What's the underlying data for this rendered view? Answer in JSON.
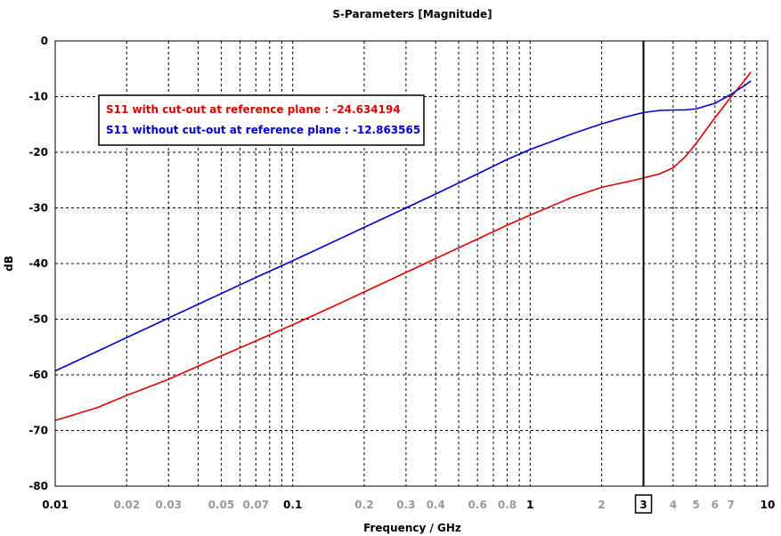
{
  "chart_data": {
    "type": "line",
    "title": "S-Parameters [Magnitude]",
    "xlabel": "Frequency / GHz",
    "ylabel": "dB",
    "xscale": "log",
    "xlim": [
      0.01,
      10
    ],
    "ylim": [
      -80,
      0
    ],
    "grid": true,
    "yticks": [
      "0",
      "-10",
      "-20",
      "-30",
      "-40",
      "-50",
      "-60",
      "-70",
      "-80"
    ],
    "xticks_major": [
      {
        "value": 0.01,
        "label": "0.01"
      },
      {
        "value": 0.1,
        "label": "0.1"
      },
      {
        "value": 1,
        "label": "1"
      },
      {
        "value": 10,
        "label": "10"
      }
    ],
    "xticks_minor": [
      {
        "value": 0.02,
        "label": "0.02"
      },
      {
        "value": 0.03,
        "label": "0.03"
      },
      {
        "value": 0.05,
        "label": "0.05"
      },
      {
        "value": 0.07,
        "label": "0.07"
      },
      {
        "value": 0.2,
        "label": "0.2"
      },
      {
        "value": 0.3,
        "label": "0.3"
      },
      {
        "value": 0.4,
        "label": "0.4"
      },
      {
        "value": 0.6,
        "label": "0.6"
      },
      {
        "value": 0.8,
        "label": "0.8"
      },
      {
        "value": 2,
        "label": "2"
      },
      {
        "value": 4,
        "label": "4"
      },
      {
        "value": 5,
        "label": "5"
      },
      {
        "value": 6,
        "label": "6"
      },
      {
        "value": 7,
        "label": "7"
      }
    ],
    "marker": {
      "value": 3,
      "label": "3"
    },
    "legend": {
      "placement": "top-left",
      "entries": [
        {
          "text": "S11 with cut-out at reference plane : -24.634194",
          "color": "#e00000"
        },
        {
          "text": "S11 without cut-out at reference plane : -12.863565",
          "color": "#0000cc"
        }
      ]
    },
    "series": [
      {
        "color": "#e00000",
        "x": [
          0.01,
          0.015,
          0.02,
          0.03,
          0.05,
          0.07,
          0.1,
          0.15,
          0.2,
          0.3,
          0.4,
          0.6,
          0.8,
          1,
          1.5,
          2,
          2.5,
          3,
          3.5,
          4,
          4.5,
          5,
          6,
          7,
          8,
          8.5
        ],
        "y": [
          -68.2,
          -65.9,
          -63.7,
          -60.8,
          -56.6,
          -53.9,
          -51.0,
          -47.6,
          -45.1,
          -41.6,
          -39.1,
          -35.6,
          -33.1,
          -31.3,
          -28.1,
          -26.3,
          -25.4,
          -24.63,
          -23.9,
          -22.8,
          -20.8,
          -18.4,
          -13.8,
          -10.1,
          -7.1,
          -5.6
        ]
      },
      {
        "color": "#0000cc",
        "x": [
          0.01,
          0.015,
          0.02,
          0.03,
          0.05,
          0.07,
          0.1,
          0.15,
          0.2,
          0.3,
          0.4,
          0.6,
          0.8,
          1,
          1.5,
          2,
          2.5,
          3,
          3.5,
          4,
          4.5,
          5,
          6,
          7,
          8,
          8.5
        ],
        "y": [
          -59.3,
          -55.8,
          -53.3,
          -49.8,
          -45.4,
          -42.5,
          -39.5,
          -36.0,
          -33.5,
          -30.0,
          -27.5,
          -23.9,
          -21.3,
          -19.5,
          -16.7,
          -14.9,
          -13.7,
          -12.86,
          -12.5,
          -12.4,
          -12.4,
          -12.2,
          -11.2,
          -9.6,
          -8.0,
          -7.2
        ]
      }
    ]
  }
}
